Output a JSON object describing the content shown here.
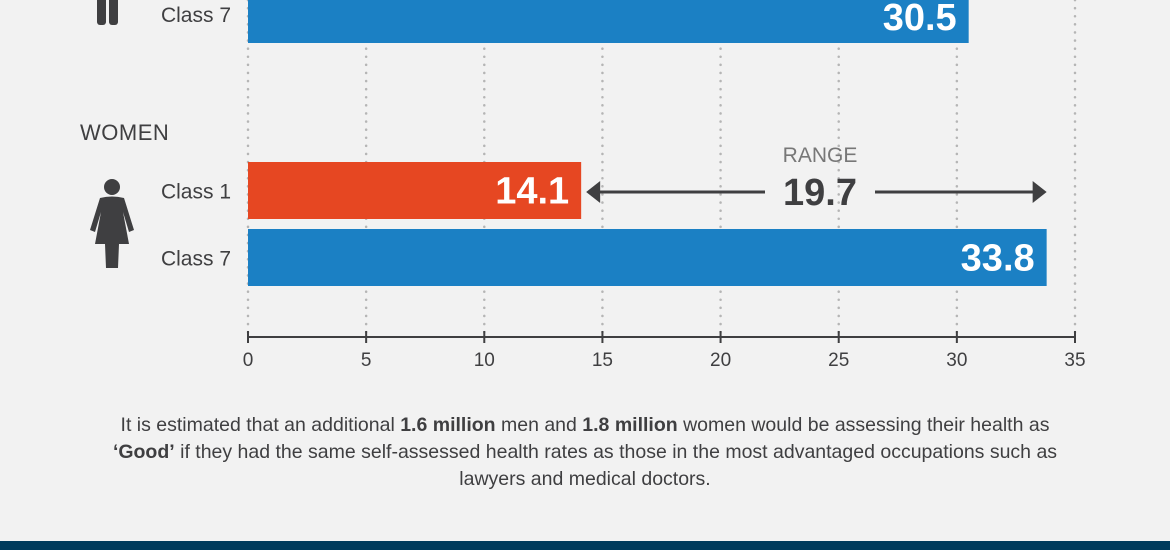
{
  "chart_data": {
    "type": "bar",
    "orientation": "horizontal",
    "groups": [
      {
        "name": "",
        "bars": [
          {
            "category": "Class 7",
            "value": 30.5,
            "color": "#1b80c4"
          }
        ]
      },
      {
        "name": "WOMEN",
        "bars": [
          {
            "category": "Class 1",
            "value": 14.1,
            "color": "#e64722"
          },
          {
            "category": "Class 7",
            "value": 33.8,
            "color": "#1b80c4"
          }
        ]
      }
    ],
    "xlim": [
      0,
      35
    ],
    "xticks": [
      "0",
      "5",
      "10",
      "15",
      "20",
      "25",
      "30",
      "35"
    ],
    "grid": true,
    "annotation": {
      "label": "RANGE",
      "value": "19.7",
      "from": 14.1,
      "to": 33.8
    }
  },
  "note": {
    "p1": "It is estimated that an additional ",
    "b1": "1.6 million",
    "p2": " men and ",
    "b2": "1.8 million",
    "p3": " women would be assessing their health as ",
    "b3": "‘Good’",
    "p4": " if they had the same self-assessed health rates as those in the most advantaged occupations such as lawyers and medical doctors."
  }
}
